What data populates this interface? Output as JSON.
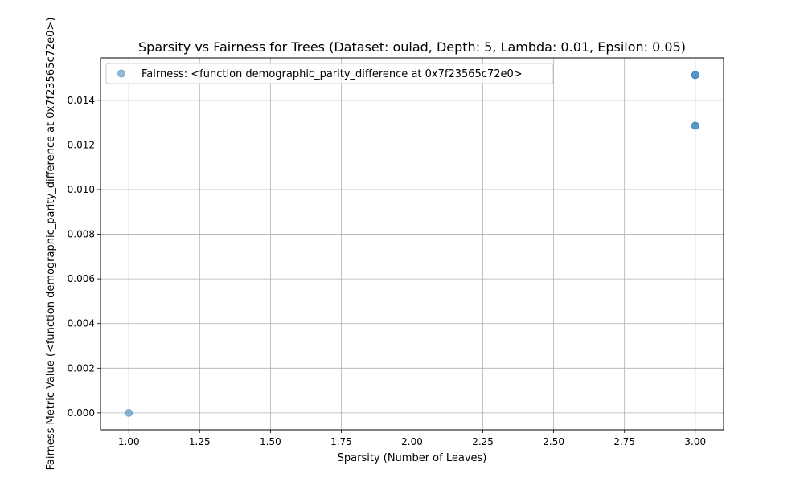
{
  "chart_data": {
    "type": "scatter",
    "title": "Sparsity vs Fairness for Trees (Dataset: oulad, Depth: 5, Lambda: 0.01, Epsilon: 0.05)",
    "xlabel": "Sparsity (Number of Leaves)",
    "ylabel": "Fairness Metric Value (<function demographic_parity_difference at 0x7f23565c72e0>)",
    "xlim": [
      0.9,
      3.1
    ],
    "ylim": [
      -0.00076,
      0.0159
    ],
    "xticks": [
      1.0,
      1.25,
      1.5,
      1.75,
      2.0,
      2.25,
      2.5,
      2.75,
      3.0
    ],
    "xtick_labels": [
      "1.00",
      "1.25",
      "1.50",
      "1.75",
      "2.00",
      "2.25",
      "2.50",
      "2.75",
      "3.00"
    ],
    "yticks": [
      0.0,
      0.002,
      0.004,
      0.006,
      0.008,
      0.01,
      0.012,
      0.014
    ],
    "ytick_labels": [
      "0.000",
      "0.002",
      "0.004",
      "0.006",
      "0.008",
      "0.010",
      "0.012",
      "0.014"
    ],
    "grid": true,
    "legend_position": "top-left",
    "series": [
      {
        "name": "Fairness: <function demographic_parity_difference at 0x7f23565c72e0>",
        "color": "#1f77b4",
        "alpha": 0.5,
        "points": [
          {
            "x": 1.0,
            "y": 0.0
          },
          {
            "x": 3.0,
            "y": 0.01286
          },
          {
            "x": 3.0,
            "y": 0.01286
          },
          {
            "x": 3.0,
            "y": 0.01513
          },
          {
            "x": 3.0,
            "y": 0.01513
          }
        ]
      }
    ]
  }
}
